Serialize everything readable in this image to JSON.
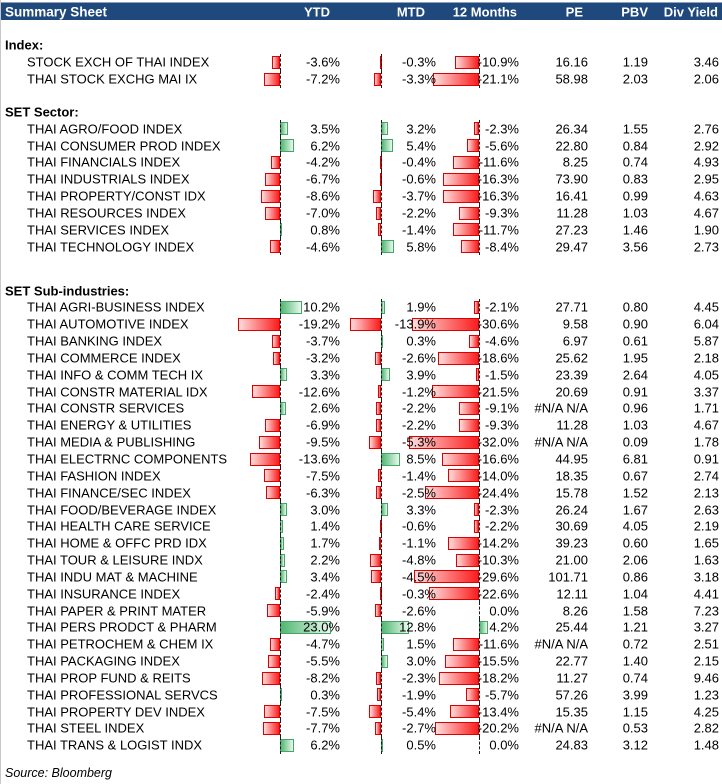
{
  "header": {
    "title": "Summary Sheet",
    "columns": [
      "YTD",
      "MTD",
      "12 Months",
      "PE",
      "PBV",
      "Div Yield"
    ]
  },
  "colors": {
    "header_bg": "#1F497D",
    "positive_bar": "#4fb871",
    "negative_bar": "#fb1d1d"
  },
  "source": "Source: Bloomberg",
  "sections": [
    {
      "label": "Index:",
      "rows": [
        {
          "name": "STOCK EXCH OF THAI INDEX",
          "ytd": -3.6,
          "mtd": -0.3,
          "m12": -10.9,
          "pe": "16.16",
          "pbv": "1.19",
          "div": "3.46"
        },
        {
          "name": "THAI STOCK EXCHG MAI IX",
          "ytd": -7.2,
          "mtd": -3.3,
          "m12": -21.1,
          "pe": "58.98",
          "pbv": "2.03",
          "div": "2.06"
        }
      ]
    },
    {
      "label": "SET Sector:",
      "rows": [
        {
          "name": "THAI AGRO/FOOD INDEX",
          "ytd": 3.5,
          "mtd": 3.2,
          "m12": -2.3,
          "pe": "26.34",
          "pbv": "1.55",
          "div": "2.76"
        },
        {
          "name": "THAI CONSUMER PROD INDEX",
          "ytd": 6.2,
          "mtd": 5.4,
          "m12": -5.6,
          "pe": "22.80",
          "pbv": "0.84",
          "div": "2.92"
        },
        {
          "name": "THAI FINANCIALS INDEX",
          "ytd": -4.2,
          "mtd": -0.4,
          "m12": -11.6,
          "pe": "8.25",
          "pbv": "0.74",
          "div": "4.93"
        },
        {
          "name": "THAI INDUSTRIALS INDEX",
          "ytd": -6.7,
          "mtd": -0.6,
          "m12": -16.3,
          "pe": "73.90",
          "pbv": "0.83",
          "div": "2.95"
        },
        {
          "name": "THAI PROPERTY/CONST IDX",
          "ytd": -8.6,
          "mtd": -3.7,
          "m12": -16.3,
          "pe": "16.41",
          "pbv": "0.99",
          "div": "4.63"
        },
        {
          "name": "THAI RESOURCES INDEX",
          "ytd": -7.0,
          "mtd": -2.2,
          "m12": -9.3,
          "pe": "11.28",
          "pbv": "1.03",
          "div": "4.67"
        },
        {
          "name": "THAI SERVICES INDEX",
          "ytd": 0.8,
          "mtd": -1.4,
          "m12": -11.7,
          "pe": "27.23",
          "pbv": "1.46",
          "div": "1.90"
        },
        {
          "name": "THAI TECHNOLOGY INDEX",
          "ytd": -4.6,
          "mtd": 5.8,
          "m12": -8.4,
          "pe": "29.47",
          "pbv": "3.56",
          "div": "2.73"
        }
      ]
    },
    {
      "label": "SET Sub-industries:",
      "rows": [
        {
          "name": "THAI AGRI-BUSINESS INDEX",
          "ytd": 10.2,
          "mtd": 1.9,
          "m12": -2.1,
          "pe": "27.71",
          "pbv": "0.80",
          "div": "4.45"
        },
        {
          "name": "THAI AUTOMOTIVE INDEX",
          "ytd": -19.2,
          "mtd": -13.9,
          "m12": -30.6,
          "pe": "9.58",
          "pbv": "0.90",
          "div": "6.04"
        },
        {
          "name": "THAI BANKING INDEX",
          "ytd": -3.7,
          "mtd": 0.3,
          "m12": -4.6,
          "pe": "6.97",
          "pbv": "0.61",
          "div": "5.87"
        },
        {
          "name": "THAI COMMERCE INDEX",
          "ytd": -3.2,
          "mtd": -2.6,
          "m12": -18.6,
          "pe": "25.62",
          "pbv": "1.95",
          "div": "2.18"
        },
        {
          "name": "THAI INFO & COMM TECH IX",
          "ytd": 3.3,
          "mtd": 3.9,
          "m12": -1.5,
          "pe": "23.39",
          "pbv": "2.64",
          "div": "4.05"
        },
        {
          "name": "THAI CONSTR MATERIAL IDX",
          "ytd": -12.6,
          "mtd": -1.2,
          "m12": -21.5,
          "pe": "20.69",
          "pbv": "0.91",
          "div": "3.37"
        },
        {
          "name": "THAI CONSTR SERVICES",
          "ytd": 2.6,
          "mtd": -2.2,
          "m12": -9.1,
          "pe": "#N/A N/A",
          "pbv": "0.96",
          "div": "1.71"
        },
        {
          "name": "THAI ENERGY & UTILITIES",
          "ytd": -6.9,
          "mtd": -2.2,
          "m12": -9.3,
          "pe": "11.28",
          "pbv": "1.03",
          "div": "4.67"
        },
        {
          "name": "THAI MEDIA & PUBLISHING",
          "ytd": -9.5,
          "mtd": -5.3,
          "m12": -32.0,
          "pe": "#N/A N/A",
          "pbv": "0.09",
          "div": "1.78"
        },
        {
          "name": "THAI ELECTRNC COMPONENTS",
          "ytd": -13.6,
          "mtd": 8.5,
          "m12": -16.6,
          "pe": "44.95",
          "pbv": "6.81",
          "div": "0.91"
        },
        {
          "name": "THAI FASHION INDEX",
          "ytd": -7.5,
          "mtd": -1.4,
          "m12": -14.0,
          "pe": "18.35",
          "pbv": "0.67",
          "div": "2.74"
        },
        {
          "name": "THAI FINANCE/SEC INDEX",
          "ytd": -6.3,
          "mtd": -2.5,
          "m12": -24.4,
          "pe": "15.78",
          "pbv": "1.52",
          "div": "2.13"
        },
        {
          "name": "THAI FOOD/BEVERAGE INDEX",
          "ytd": 3.0,
          "mtd": 3.3,
          "m12": -2.3,
          "pe": "26.24",
          "pbv": "1.67",
          "div": "2.63"
        },
        {
          "name": "THAI HEALTH CARE SERVICE",
          "ytd": 1.4,
          "mtd": -0.6,
          "m12": -2.2,
          "pe": "30.69",
          "pbv": "4.05",
          "div": "2.19"
        },
        {
          "name": "THAI HOME & OFFC PRD IDX",
          "ytd": 1.7,
          "mtd": -1.1,
          "m12": -14.2,
          "pe": "39.23",
          "pbv": "0.60",
          "div": "1.65"
        },
        {
          "name": "THAI TOUR & LEISURE INDX",
          "ytd": 2.2,
          "mtd": -4.8,
          "m12": -10.3,
          "pe": "21.00",
          "pbv": "2.06",
          "div": "1.63"
        },
        {
          "name": "THAI INDU MAT & MACHINE",
          "ytd": 3.4,
          "mtd": -4.5,
          "m12": -29.6,
          "pe": "101.71",
          "pbv": "0.86",
          "div": "3.18"
        },
        {
          "name": "THAI INSURANCE INDEX",
          "ytd": -2.4,
          "mtd": -0.3,
          "m12": -22.6,
          "pe": "12.11",
          "pbv": "1.04",
          "div": "4.41"
        },
        {
          "name": "THAI PAPER & PRINT MATER",
          "ytd": -5.9,
          "mtd": -2.6,
          "m12": 0.0,
          "pe": "8.26",
          "pbv": "1.58",
          "div": "7.23"
        },
        {
          "name": "THAI PERS PRODCT & PHARM",
          "ytd": 23.0,
          "mtd": 12.8,
          "m12": 4.2,
          "pe": "25.44",
          "pbv": "1.21",
          "div": "3.27"
        },
        {
          "name": "THAI PETROCHEM & CHEM IX",
          "ytd": -4.7,
          "mtd": 1.5,
          "m12": -11.6,
          "pe": "#N/A N/A",
          "pbv": "0.72",
          "div": "2.51"
        },
        {
          "name": "THAI PACKAGING INDEX",
          "ytd": -5.5,
          "mtd": 3.0,
          "m12": -15.5,
          "pe": "22.77",
          "pbv": "1.40",
          "div": "2.15"
        },
        {
          "name": "THAI PROP FUND & REITS",
          "ytd": -8.2,
          "mtd": -2.3,
          "m12": -18.2,
          "pe": "11.27",
          "pbv": "0.74",
          "div": "9.46"
        },
        {
          "name": "THAI PROFESSIONAL SERVCS",
          "ytd": 0.3,
          "mtd": -1.9,
          "m12": -5.7,
          "pe": "57.26",
          "pbv": "3.99",
          "div": "1.23"
        },
        {
          "name": "THAI PROPERTY DEV INDEX",
          "ytd": -7.5,
          "mtd": -5.4,
          "m12": -13.4,
          "pe": "15.35",
          "pbv": "1.15",
          "div": "4.25"
        },
        {
          "name": "THAI STEEL INDEX",
          "ytd": -7.7,
          "mtd": -2.7,
          "m12": -20.2,
          "pe": "#N/A N/A",
          "pbv": "0.53",
          "div": "2.82"
        },
        {
          "name": "THAI TRANS & LOGIST INDX",
          "ytd": 6.2,
          "mtd": 0.5,
          "m12": 0.0,
          "pe": "24.83",
          "pbv": "3.12",
          "div": "1.48"
        }
      ]
    }
  ]
}
